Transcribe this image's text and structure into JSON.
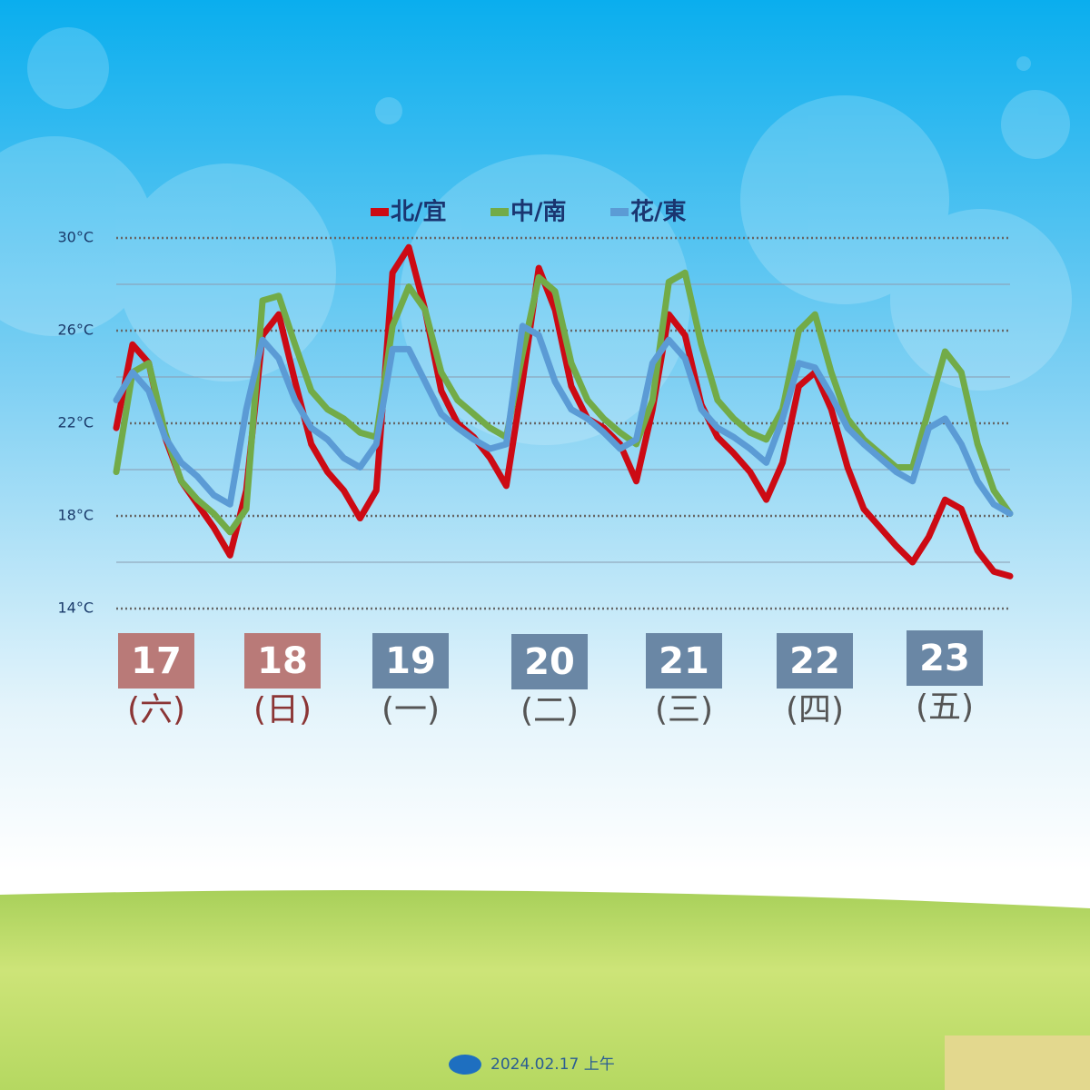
{
  "chart_data": {
    "type": "line",
    "series": [
      {
        "name": "北/宜",
        "color": "#cc0a14",
        "values": [
          21.8,
          25.4,
          24.6,
          21.4,
          19.5,
          18.5,
          17.5,
          16.3,
          19.1,
          25.8,
          26.7,
          23.8,
          21.1,
          19.9,
          19.1,
          17.9,
          19.1,
          28.5,
          29.6,
          26.9,
          23.4,
          22.0,
          21.4,
          20.5,
          19.3,
          23.8,
          28.7,
          26.9,
          23.6,
          22.2,
          21.8,
          21.1,
          19.5,
          22.6,
          26.7,
          25.8,
          22.8,
          21.4,
          20.7,
          19.9,
          18.7,
          20.3,
          23.6,
          24.2,
          22.6,
          20.1,
          18.3,
          17.5,
          16.7,
          16.0,
          17.1,
          18.7,
          18.3,
          16.5,
          15.6,
          15.4
        ]
      },
      {
        "name": "中/南",
        "color": "#72ab48",
        "values": [
          19.9,
          24.2,
          24.6,
          21.6,
          19.5,
          18.7,
          18.1,
          17.3,
          18.3,
          27.3,
          27.5,
          25.4,
          23.4,
          22.6,
          22.2,
          21.6,
          21.4,
          26.2,
          27.9,
          26.9,
          24.2,
          23.0,
          22.4,
          21.8,
          21.4,
          25.0,
          28.3,
          27.7,
          24.6,
          23.0,
          22.2,
          21.6,
          21.1,
          23.0,
          28.1,
          28.5,
          25.4,
          23.0,
          22.2,
          21.6,
          21.3,
          22.6,
          26.0,
          26.7,
          24.2,
          22.2,
          21.3,
          20.7,
          20.1,
          20.1,
          22.6,
          25.1,
          24.2,
          21.1,
          19.1,
          18.1
        ]
      },
      {
        "name": "花/東",
        "color": "#5b9bd5",
        "values": [
          23.0,
          24.2,
          23.4,
          21.4,
          20.3,
          19.7,
          18.9,
          18.5,
          22.6,
          25.6,
          24.8,
          23.0,
          21.8,
          21.3,
          20.5,
          20.1,
          21.1,
          25.2,
          25.2,
          23.8,
          22.4,
          21.8,
          21.3,
          20.9,
          21.1,
          26.2,
          25.8,
          23.8,
          22.6,
          22.2,
          21.6,
          20.9,
          21.3,
          24.6,
          25.6,
          24.8,
          22.6,
          21.8,
          21.4,
          20.9,
          20.3,
          22.2,
          24.6,
          24.4,
          23.2,
          21.8,
          21.1,
          20.5,
          19.9,
          19.5,
          21.8,
          22.2,
          21.1,
          19.5,
          18.5,
          18.1
        ]
      }
    ],
    "ylim": [
      14,
      30
    ],
    "yticks": [
      {
        "value": 30,
        "label": "30°C"
      },
      {
        "value": 26,
        "label": "26°C"
      },
      {
        "value": 22,
        "label": "22°C"
      },
      {
        "value": 18,
        "label": "18°C"
      },
      {
        "value": 14,
        "label": "14°C"
      }
    ],
    "minor_yticks": [
      28,
      24,
      20,
      16
    ],
    "days": [
      {
        "date": "17",
        "weekday": "(六)",
        "box_color": "#b97a78",
        "text_color": "#8b3535"
      },
      {
        "date": "18",
        "weekday": "(日)",
        "box_color": "#b97a78",
        "text_color": "#8b3535"
      },
      {
        "date": "19",
        "weekday": "(一)",
        "box_color": "#6a87a5",
        "text_color": "#555555"
      },
      {
        "date": "20",
        "weekday": "(二)",
        "box_color": "#6a87a5",
        "text_color": "#555555"
      },
      {
        "date": "21",
        "weekday": "(三)",
        "box_color": "#6a87a5",
        "text_color": "#555555"
      },
      {
        "date": "22",
        "weekday": "(四)",
        "box_color": "#6a87a5",
        "text_color": "#555555"
      },
      {
        "date": "23",
        "weekday": "(五)",
        "box_color": "#6a87a5",
        "text_color": "#555555"
      }
    ],
    "footer": "2024.02.17  上午"
  }
}
